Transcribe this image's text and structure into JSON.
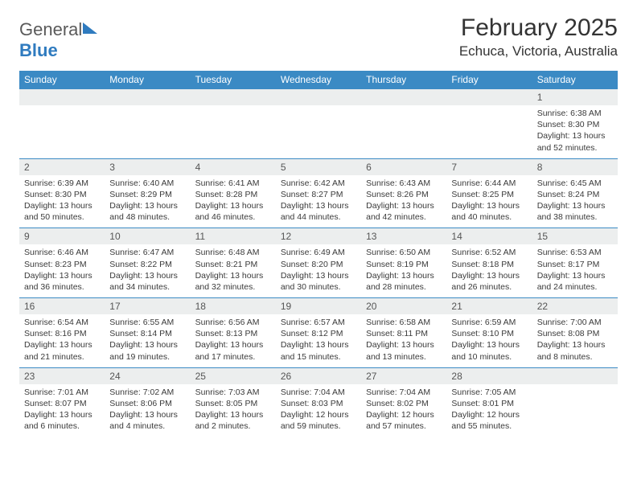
{
  "brand": {
    "part1": "General",
    "part2": "Blue"
  },
  "title": "February 2025",
  "location": "Echuca, Victoria, Australia",
  "colors": {
    "header_bg": "#3b8ac4",
    "header_fg": "#ffffff",
    "daynum_bg": "#eceeee",
    "row_divider": "#3b8ac4",
    "text": "#333333"
  },
  "weekdays": [
    "Sunday",
    "Monday",
    "Tuesday",
    "Wednesday",
    "Thursday",
    "Friday",
    "Saturday"
  ],
  "first_weekday_index": 6,
  "days": [
    {
      "n": 1,
      "sunrise": "6:38 AM",
      "sunset": "8:30 PM",
      "daylight": "13 hours and 52 minutes."
    },
    {
      "n": 2,
      "sunrise": "6:39 AM",
      "sunset": "8:30 PM",
      "daylight": "13 hours and 50 minutes."
    },
    {
      "n": 3,
      "sunrise": "6:40 AM",
      "sunset": "8:29 PM",
      "daylight": "13 hours and 48 minutes."
    },
    {
      "n": 4,
      "sunrise": "6:41 AM",
      "sunset": "8:28 PM",
      "daylight": "13 hours and 46 minutes."
    },
    {
      "n": 5,
      "sunrise": "6:42 AM",
      "sunset": "8:27 PM",
      "daylight": "13 hours and 44 minutes."
    },
    {
      "n": 6,
      "sunrise": "6:43 AM",
      "sunset": "8:26 PM",
      "daylight": "13 hours and 42 minutes."
    },
    {
      "n": 7,
      "sunrise": "6:44 AM",
      "sunset": "8:25 PM",
      "daylight": "13 hours and 40 minutes."
    },
    {
      "n": 8,
      "sunrise": "6:45 AM",
      "sunset": "8:24 PM",
      "daylight": "13 hours and 38 minutes."
    },
    {
      "n": 9,
      "sunrise": "6:46 AM",
      "sunset": "8:23 PM",
      "daylight": "13 hours and 36 minutes."
    },
    {
      "n": 10,
      "sunrise": "6:47 AM",
      "sunset": "8:22 PM",
      "daylight": "13 hours and 34 minutes."
    },
    {
      "n": 11,
      "sunrise": "6:48 AM",
      "sunset": "8:21 PM",
      "daylight": "13 hours and 32 minutes."
    },
    {
      "n": 12,
      "sunrise": "6:49 AM",
      "sunset": "8:20 PM",
      "daylight": "13 hours and 30 minutes."
    },
    {
      "n": 13,
      "sunrise": "6:50 AM",
      "sunset": "8:19 PM",
      "daylight": "13 hours and 28 minutes."
    },
    {
      "n": 14,
      "sunrise": "6:52 AM",
      "sunset": "8:18 PM",
      "daylight": "13 hours and 26 minutes."
    },
    {
      "n": 15,
      "sunrise": "6:53 AM",
      "sunset": "8:17 PM",
      "daylight": "13 hours and 24 minutes."
    },
    {
      "n": 16,
      "sunrise": "6:54 AM",
      "sunset": "8:16 PM",
      "daylight": "13 hours and 21 minutes."
    },
    {
      "n": 17,
      "sunrise": "6:55 AM",
      "sunset": "8:14 PM",
      "daylight": "13 hours and 19 minutes."
    },
    {
      "n": 18,
      "sunrise": "6:56 AM",
      "sunset": "8:13 PM",
      "daylight": "13 hours and 17 minutes."
    },
    {
      "n": 19,
      "sunrise": "6:57 AM",
      "sunset": "8:12 PM",
      "daylight": "13 hours and 15 minutes."
    },
    {
      "n": 20,
      "sunrise": "6:58 AM",
      "sunset": "8:11 PM",
      "daylight": "13 hours and 13 minutes."
    },
    {
      "n": 21,
      "sunrise": "6:59 AM",
      "sunset": "8:10 PM",
      "daylight": "13 hours and 10 minutes."
    },
    {
      "n": 22,
      "sunrise": "7:00 AM",
      "sunset": "8:08 PM",
      "daylight": "13 hours and 8 minutes."
    },
    {
      "n": 23,
      "sunrise": "7:01 AM",
      "sunset": "8:07 PM",
      "daylight": "13 hours and 6 minutes."
    },
    {
      "n": 24,
      "sunrise": "7:02 AM",
      "sunset": "8:06 PM",
      "daylight": "13 hours and 4 minutes."
    },
    {
      "n": 25,
      "sunrise": "7:03 AM",
      "sunset": "8:05 PM",
      "daylight": "13 hours and 2 minutes."
    },
    {
      "n": 26,
      "sunrise": "7:04 AM",
      "sunset": "8:03 PM",
      "daylight": "12 hours and 59 minutes."
    },
    {
      "n": 27,
      "sunrise": "7:04 AM",
      "sunset": "8:02 PM",
      "daylight": "12 hours and 57 minutes."
    },
    {
      "n": 28,
      "sunrise": "7:05 AM",
      "sunset": "8:01 PM",
      "daylight": "12 hours and 55 minutes."
    }
  ],
  "labels": {
    "sunrise": "Sunrise:",
    "sunset": "Sunset:",
    "daylight": "Daylight:"
  }
}
